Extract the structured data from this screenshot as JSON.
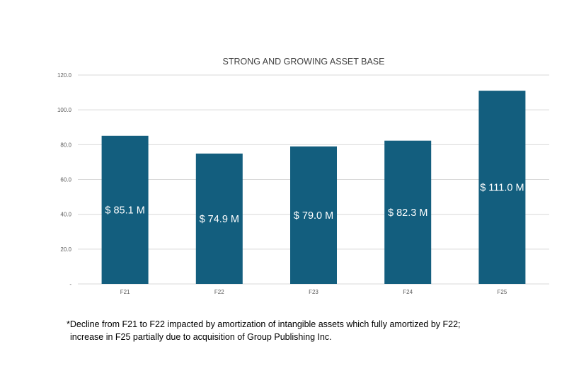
{
  "chart_data": {
    "type": "bar",
    "title": "STRONG AND GROWING ASSET BASE",
    "categories": [
      "F21",
      "F22",
      "F23",
      "F24",
      "F25"
    ],
    "values": [
      85.1,
      74.9,
      79.0,
      82.3,
      111.0
    ],
    "data_labels": [
      "$ 85.1 M",
      "$ 74.9 M",
      "$ 79.0 M",
      "$ 82.3 M",
      "$ 111.0 M"
    ],
    "y_ticks": [
      0,
      20,
      40,
      60,
      80,
      100,
      120
    ],
    "y_tick_labels": [
      "-",
      "20.0",
      "40.0",
      "60.0",
      "80.0",
      "100.0",
      "120.0"
    ],
    "ylim": [
      0,
      120
    ],
    "xlabel": "",
    "ylabel": "",
    "grid": true,
    "bar_color": "#135E7E",
    "grid_color": "#D9D9D9"
  },
  "footnote": {
    "line1": "*Decline from F21 to F22 impacted by amortization of intangible assets which fully amortized by F22;",
    "line2": "increase in F25 partially due to acquisition of Group Publishing Inc."
  }
}
